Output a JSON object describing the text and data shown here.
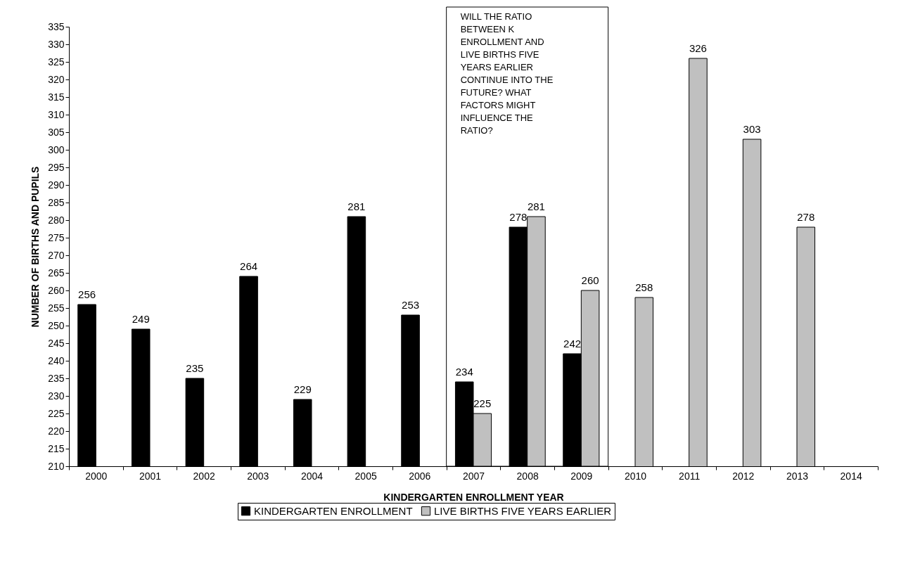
{
  "chart_data": {
    "type": "bar",
    "xlabel": "KINDERGARTEN ENROLLMENT YEAR",
    "ylabel": "NUMBER OF BIRTHS AND PUPILS",
    "categories": [
      "2000",
      "2001",
      "2002",
      "2003",
      "2004",
      "2005",
      "2006",
      "2007",
      "2008",
      "2009",
      "2010",
      "2011",
      "2012",
      "2013",
      "2014"
    ],
    "series": [
      {
        "name": "KINDERGARTEN ENROLLMENT",
        "color": "#000000",
        "values": [
          256,
          249,
          235,
          264,
          229,
          281,
          253,
          234,
          278,
          242,
          null,
          null,
          null,
          null,
          null
        ]
      },
      {
        "name": "LIVE BIRTHS FIVE YEARS EARLIER",
        "color": "#c0c0c0",
        "values": [
          null,
          null,
          null,
          null,
          null,
          null,
          null,
          225,
          281,
          260,
          258,
          326,
          303,
          278,
          null
        ]
      }
    ],
    "ylim": [
      210,
      335
    ],
    "yticks": [
      210,
      215,
      220,
      225,
      230,
      235,
      240,
      245,
      250,
      255,
      260,
      265,
      270,
      275,
      280,
      285,
      290,
      295,
      300,
      305,
      310,
      315,
      320,
      325,
      330,
      335
    ],
    "grid": false,
    "legend": "bottom",
    "data_labels": true,
    "annotations": [
      "WILL THE RATIO BETWEEN K ENROLLMENT AND LIVE BIRTHS FIVE YEARS EARLIER CONTINUE INTO THE FUTURE?  WHAT FACTORS MIGHT INFLUENCE THE RATIO?"
    ]
  }
}
